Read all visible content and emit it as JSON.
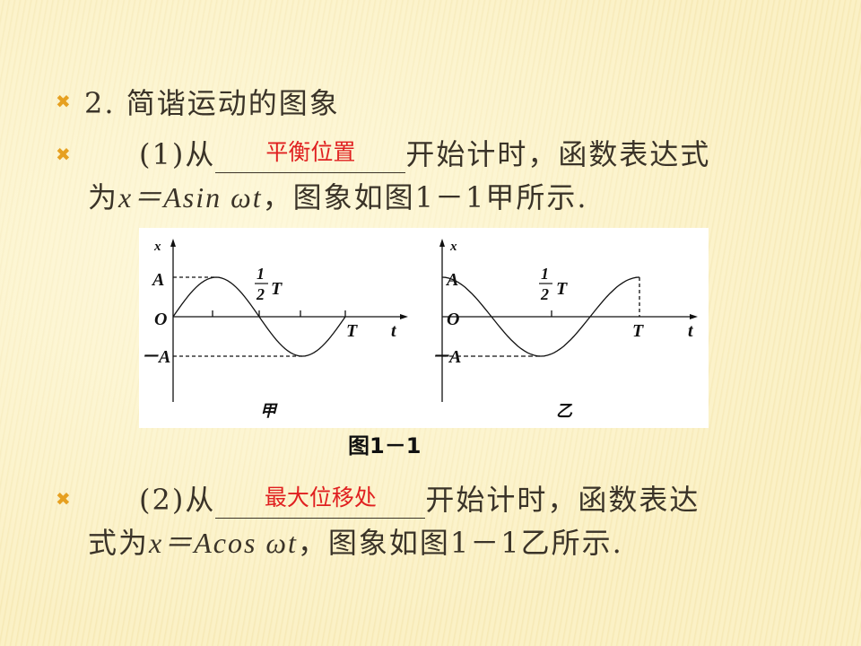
{
  "heading": {
    "number": "2.",
    "title": "简谐运动的图象"
  },
  "item1": {
    "prefix": "(1)从",
    "answer": "平衡位置",
    "suffix": "开始计时，函数表达式",
    "line2_pre": "为",
    "formula": "x＝Asin ωt",
    "line2_post": "，图象如图1－1甲所示."
  },
  "item2": {
    "prefix": "(2)从",
    "answer": "最大位移处",
    "suffix": "开始计时，函数表达",
    "line2_pre": "式为",
    "formula": "x＝Acos ωt",
    "line2_post": "，图象如图1－1乙所示."
  },
  "figure": {
    "caption": "图1－1",
    "left": {
      "label": "甲",
      "function": "sin",
      "x_axis": "x",
      "t_axis": "t",
      "amp": "A",
      "neg_amp": "－A",
      "origin": "O",
      "period": "T",
      "half_num": "1",
      "half_den": "2",
      "half_T": "T"
    },
    "right": {
      "label": "乙",
      "function": "cos",
      "x_axis": "x",
      "t_axis": "t",
      "amp": "A",
      "neg_amp": "－A",
      "origin": "O",
      "period": "T",
      "half_num": "1",
      "half_den": "2",
      "half_T": "T"
    }
  },
  "colors": {
    "bullet": "#e6a020",
    "answer": "#e02020"
  }
}
